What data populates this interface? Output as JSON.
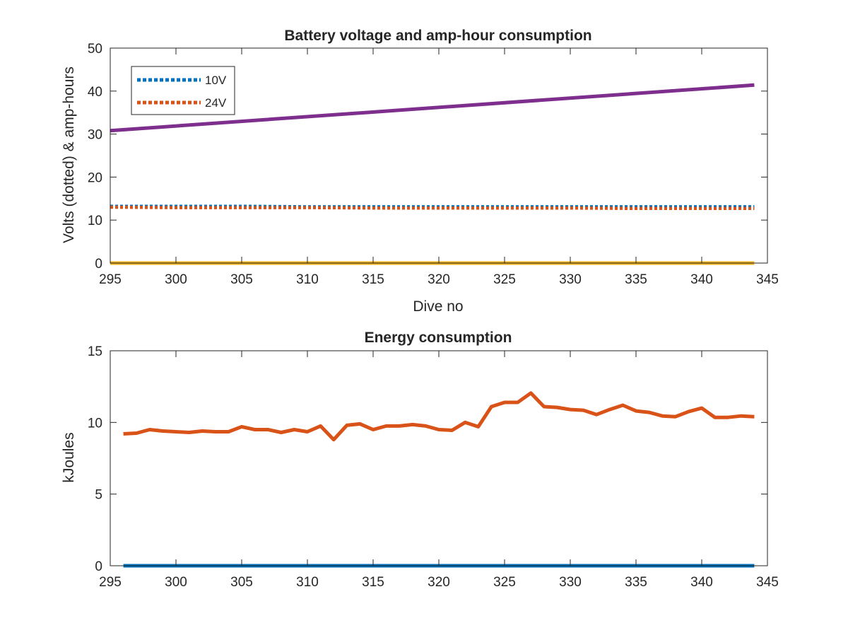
{
  "chart_data": [
    {
      "type": "line",
      "title": "Battery voltage and amp-hour consumption",
      "xlabel": "Dive no",
      "ylabel": "Volts (dotted) & amp-hours",
      "xlim": [
        295,
        345
      ],
      "ylim": [
        0,
        50
      ],
      "xticks": [
        295,
        300,
        305,
        310,
        315,
        320,
        325,
        330,
        335,
        340,
        345
      ],
      "yticks": [
        0,
        10,
        20,
        30,
        40,
        50
      ],
      "grid": false,
      "legend_position": "top-left",
      "series": [
        {
          "name": "10V",
          "style": "dotted",
          "color": "#0072BD",
          "x": [
            295,
            300,
            305,
            310,
            315,
            320,
            325,
            330,
            335,
            340,
            344
          ],
          "y": [
            13.2,
            13.2,
            13.2,
            13.1,
            13.1,
            13.1,
            13.1,
            13.1,
            13.1,
            13.1,
            13.1
          ]
        },
        {
          "name": "24V",
          "style": "dotted",
          "color": "#D95319",
          "x": [
            295,
            300,
            305,
            310,
            315,
            320,
            325,
            330,
            335,
            340,
            344
          ],
          "y": [
            13.0,
            12.9,
            12.9,
            12.9,
            12.8,
            12.8,
            12.8,
            12.8,
            12.7,
            12.7,
            12.7
          ]
        },
        {
          "style": "solid",
          "color": "#EDB120",
          "x": [
            295,
            344
          ],
          "y": [
            0,
            0
          ]
        },
        {
          "style": "solid",
          "color": "#7E2F8E",
          "x": [
            295,
            344
          ],
          "y": [
            30.8,
            41.4
          ]
        }
      ]
    },
    {
      "type": "line",
      "title": "Energy consumption",
      "xlabel": "",
      "ylabel": "kJoules",
      "xlim": [
        295,
        345
      ],
      "ylim": [
        0,
        15
      ],
      "xticks": [
        295,
        300,
        305,
        310,
        315,
        320,
        325,
        330,
        335,
        340,
        345
      ],
      "yticks": [
        0,
        5,
        10,
        15
      ],
      "grid": false,
      "series": [
        {
          "style": "solid",
          "color": "#0072BD",
          "x": [
            296,
            344
          ],
          "y": [
            0,
            0
          ]
        },
        {
          "style": "solid",
          "color": "#D95319",
          "x": [
            296,
            297,
            298,
            299,
            300,
            301,
            302,
            303,
            304,
            305,
            306,
            307,
            308,
            309,
            310,
            311,
            312,
            313,
            314,
            315,
            316,
            317,
            318,
            319,
            320,
            321,
            322,
            323,
            324,
            325,
            326,
            327,
            328,
            329,
            330,
            331,
            332,
            333,
            334,
            335,
            336,
            337,
            338,
            339,
            340,
            341,
            342,
            343,
            344
          ],
          "y": [
            9.2,
            9.25,
            9.5,
            9.4,
            9.35,
            9.3,
            9.4,
            9.35,
            9.35,
            9.7,
            9.5,
            9.5,
            9.3,
            9.5,
            9.35,
            9.75,
            8.8,
            9.8,
            9.9,
            9.5,
            9.75,
            9.75,
            9.85,
            9.75,
            9.5,
            9.45,
            10.0,
            9.7,
            11.1,
            11.4,
            11.4,
            12.05,
            11.1,
            11.05,
            10.9,
            10.85,
            10.55,
            10.9,
            11.2,
            10.8,
            10.7,
            10.45,
            10.4,
            10.75,
            11.0,
            10.35,
            10.35,
            10.45,
            10.4
          ]
        }
      ]
    }
  ]
}
